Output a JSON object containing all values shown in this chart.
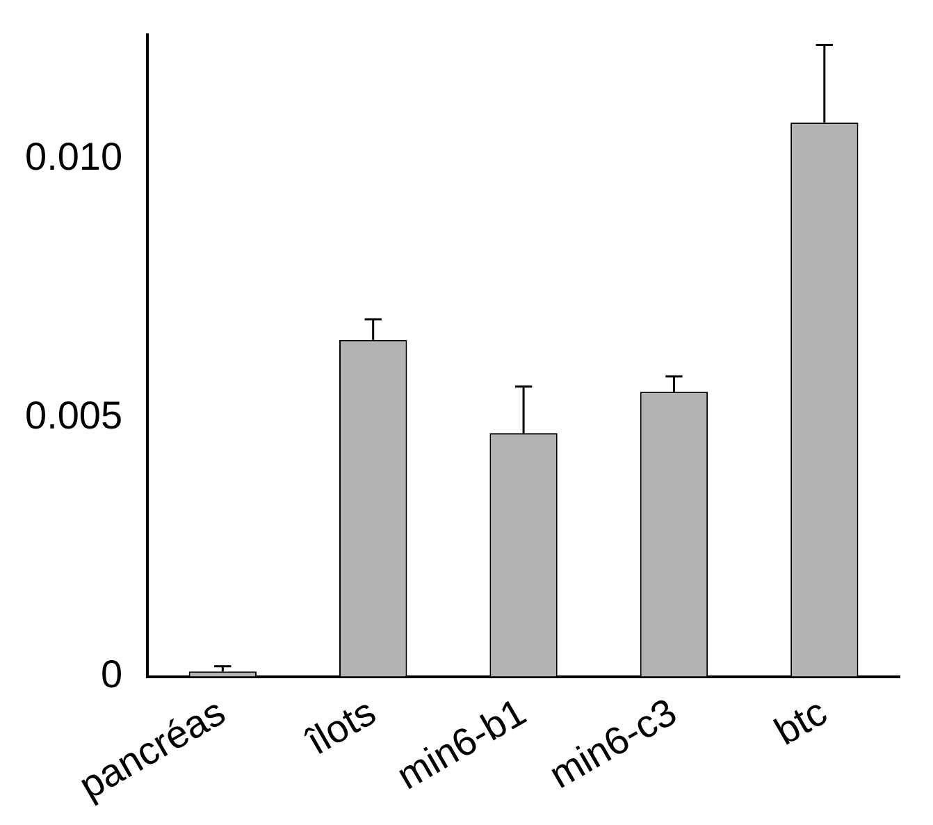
{
  "chart_data": {
    "type": "bar",
    "categories": [
      "pancréas",
      "îlots",
      "min6-b1",
      "min6-c3",
      "btc"
    ],
    "values": [
      0.0001,
      0.0065,
      0.0047,
      0.0055,
      0.0107
    ],
    "errors": [
      [
        0.0001,
        0.0002
      ],
      [
        0.0065,
        0.0069
      ],
      [
        0.0047,
        0.0056
      ],
      [
        0.0055,
        0.0058
      ],
      [
        0.0107,
        0.0122
      ]
    ],
    "color": "#b3b3b3",
    "ylim": [
      0,
      0.0124
    ],
    "yticks": [
      0,
      {
        "value": 0.005,
        "label": "0.005"
      },
      {
        "value": 0.01,
        "label": "0.010"
      }
    ],
    "grid": false,
    "legend": false
  }
}
